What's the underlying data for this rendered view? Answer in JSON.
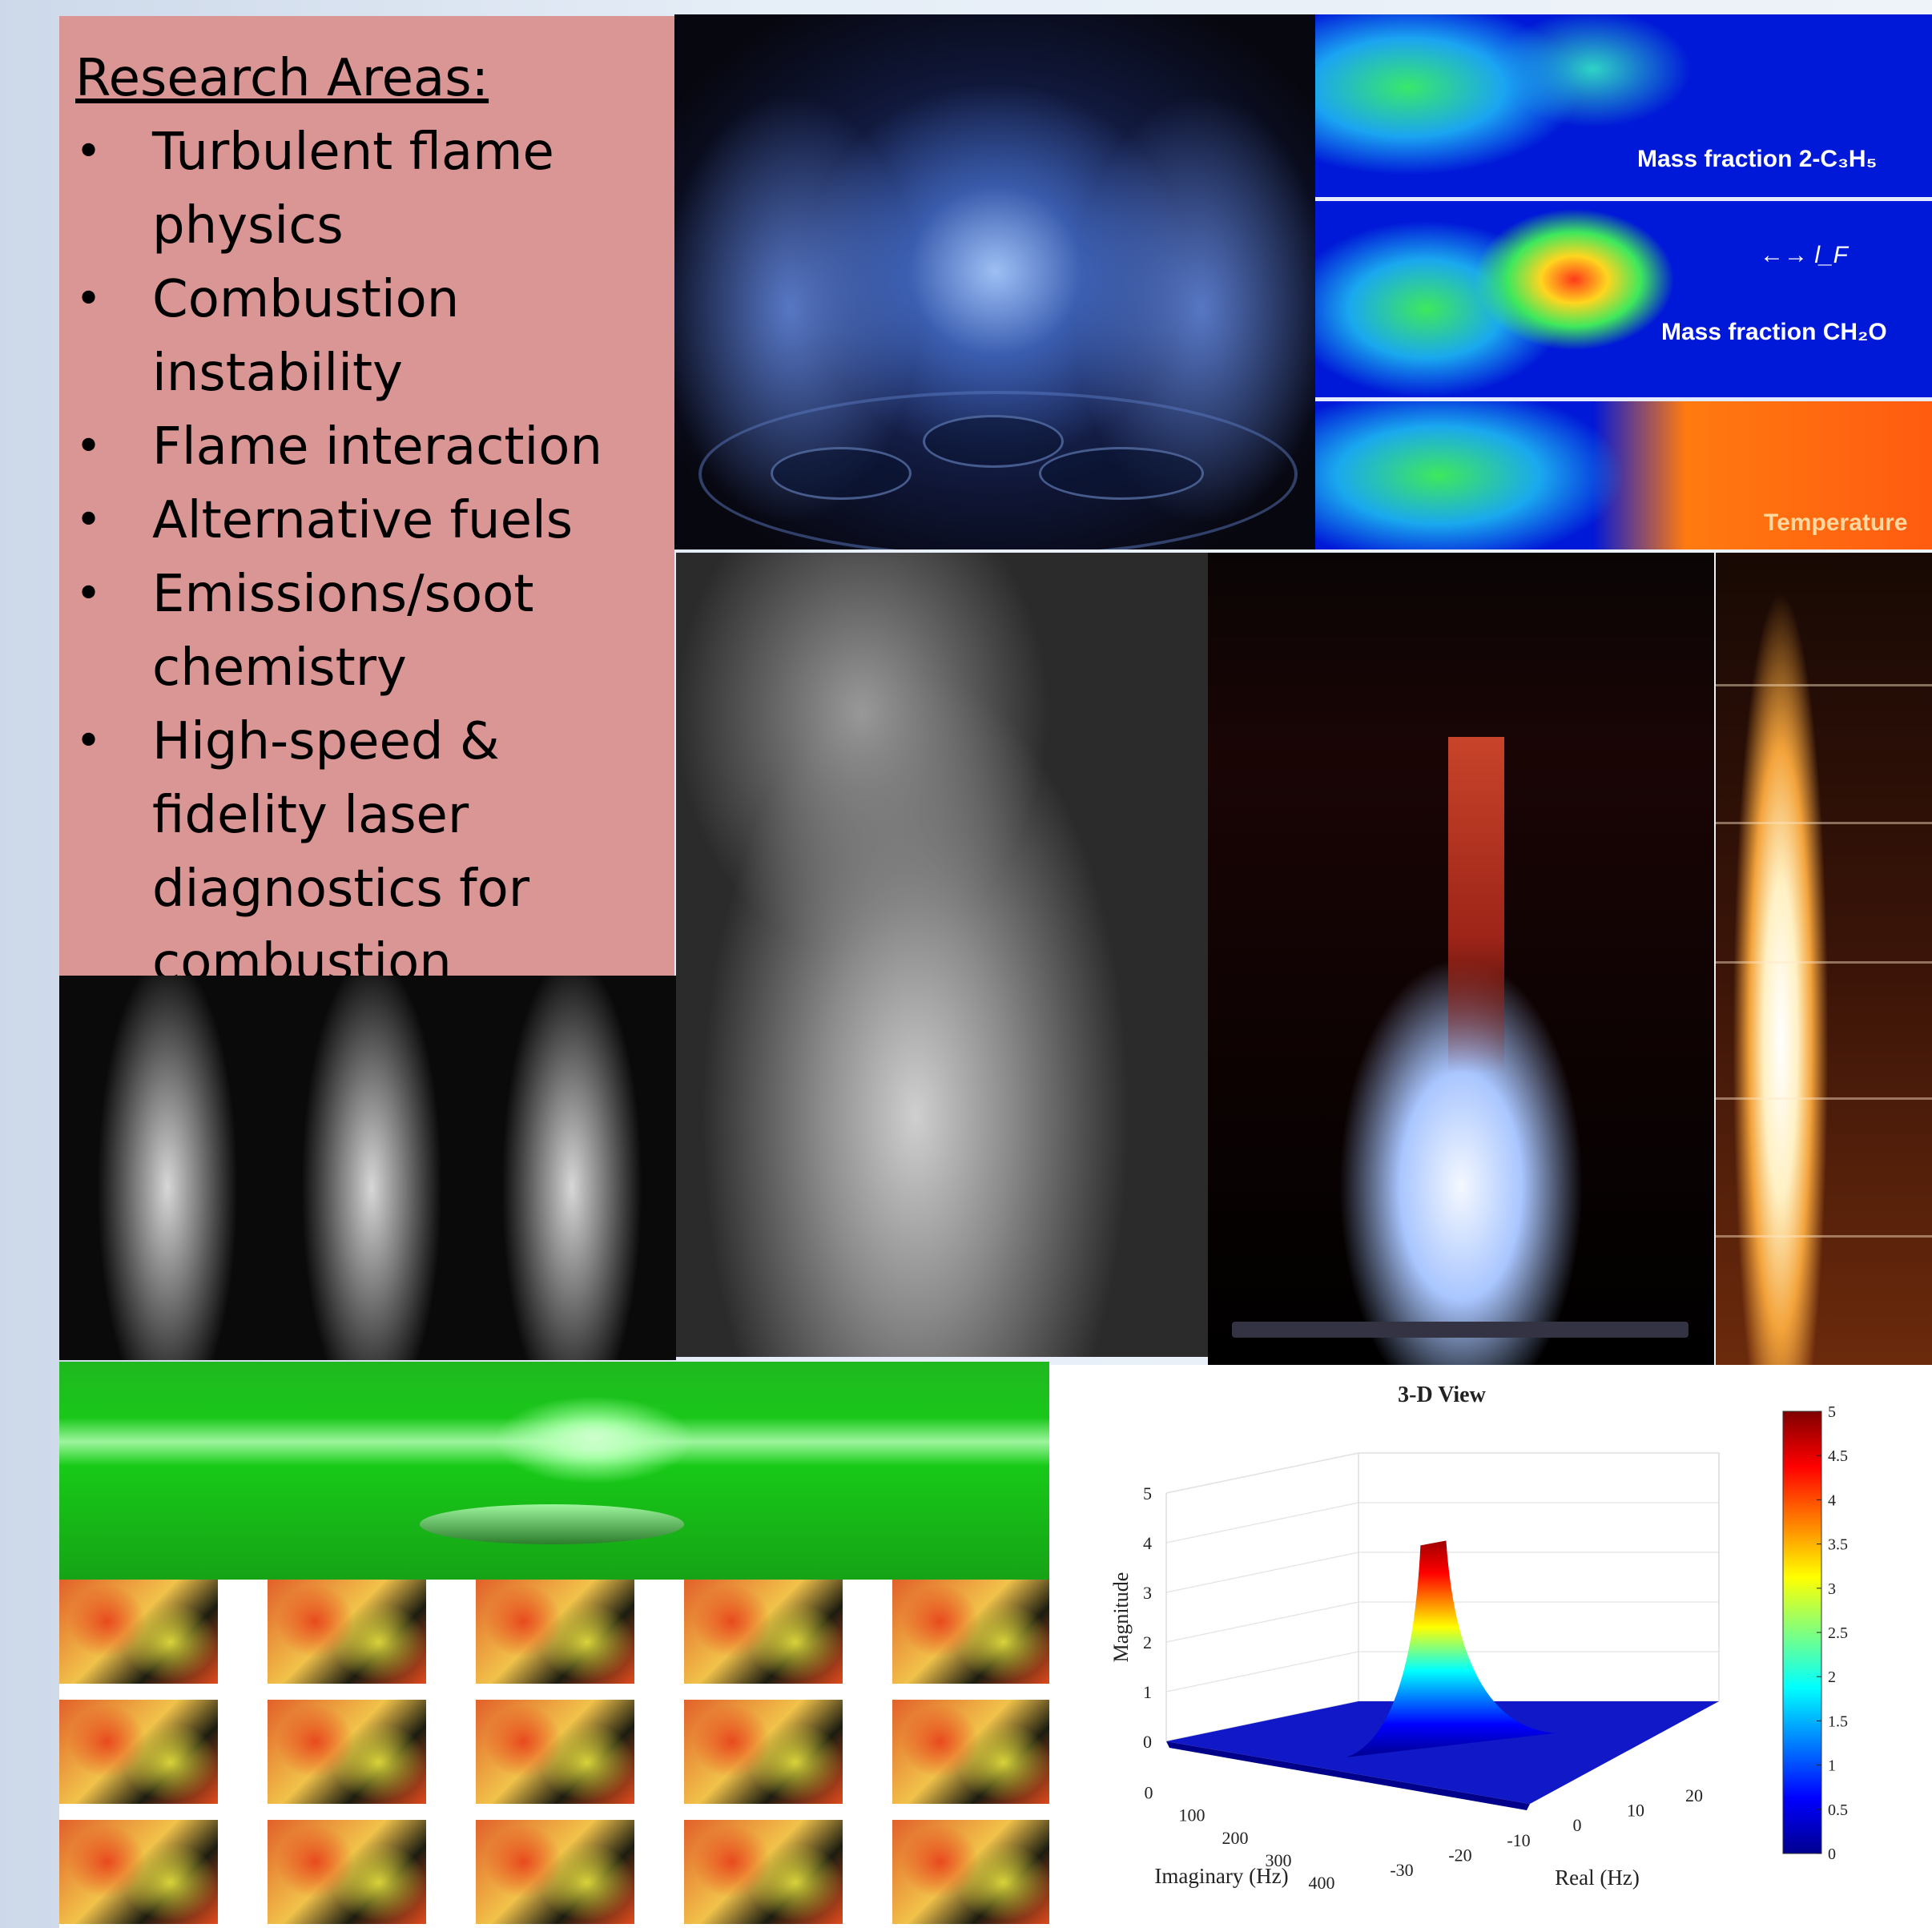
{
  "research": {
    "title": "Research Areas:",
    "items": [
      {
        "lines": [
          "Turbulent flame",
          "physics"
        ]
      },
      {
        "lines": [
          "Combustion",
          "instability"
        ]
      },
      {
        "lines": [
          "Flame interaction"
        ]
      },
      {
        "lines": [
          "Alternative fuels"
        ]
      },
      {
        "lines": [
          "Emissions/soot",
          "chemistry"
        ]
      },
      {
        "lines": [
          "High-speed &",
          "fidelity laser",
          "diagnostics for",
          "combustion"
        ]
      }
    ],
    "bullet": "•"
  },
  "simulation": {
    "label_1": "Mass fraction 2-C₃H₅",
    "label_2": "Mass fraction CH₂O",
    "label_3": "Temperature",
    "scale": "←→ l_F"
  },
  "chart_data": {
    "type": "surface",
    "title": "3-D View",
    "xlabel": "Real (Hz)",
    "ylabel": "Imaginary (Hz)",
    "zlabel": "Magnitude",
    "x_ticks": [
      "-30",
      "-20",
      "-10",
      "0",
      "10",
      "20"
    ],
    "y_ticks": [
      "0",
      "100",
      "200",
      "300",
      "400"
    ],
    "z_ticks": [
      "0",
      "1",
      "2",
      "3",
      "4",
      "5"
    ],
    "colorbar_ticks": [
      "0",
      "0.5",
      "1",
      "1.5",
      "2",
      "2.5",
      "3",
      "3.5",
      "4",
      "4.5",
      "5"
    ],
    "xlim": [
      -30,
      25
    ],
    "ylim": [
      0,
      450
    ],
    "zlim": [
      0,
      5
    ],
    "peak": {
      "real": 0,
      "imaginary": 250,
      "magnitude": 4.2
    },
    "colormap": [
      "#00008f",
      "#0000ff",
      "#00ffff",
      "#ffff00",
      "#ff0000",
      "#800000"
    ]
  }
}
